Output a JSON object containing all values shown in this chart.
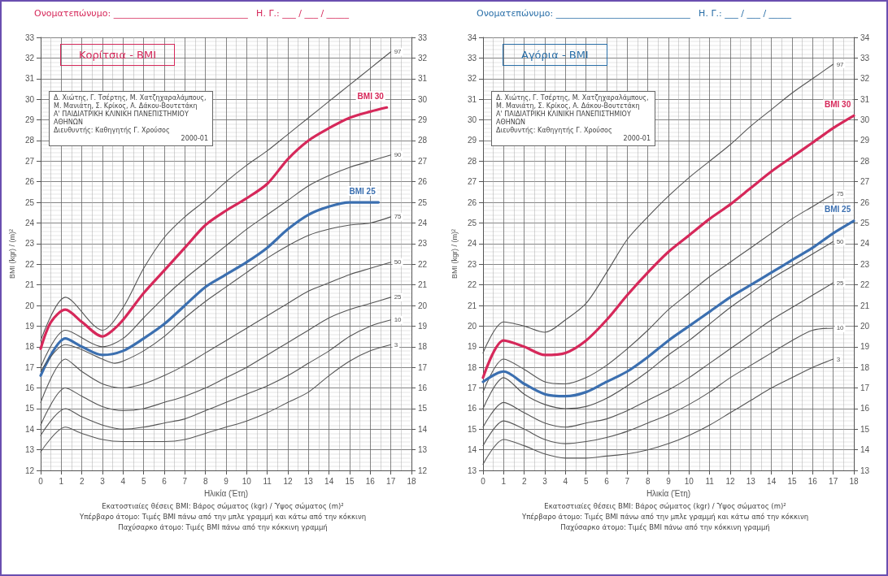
{
  "chart_data": [
    {
      "type": "line",
      "title": "Κορίτσια - BMI",
      "xlabel": "Ηλικία (Έτη)",
      "ylabel": "BMI (kgr) / (m)²",
      "annotations": [
        "Ονοματεπώνυμο: ______________________________   Η. Γ.: ___ / ___ / _____",
        "Δ. Χιώτης, Γ. Τσέρτης, Μ. Χατζηχαραλάμπους, Μ. Μανιάτη, Σ. Κρίκος, Α. Δάκου-Βουτετάκη",
        "Α' ΠΑΙΔΙΑΤΡΙΚΗ ΚΛΙΝΙΚΗ ΠΑΝΕΠΙΣΤΗΜΙΟΥ ΑΘΗΝΩΝ",
        "Διευθυντής: Καθηγητής Γ. Χρούσος",
        "2000-01",
        "Εκατοστιαίες θέσεις BMI: Βάρος σώματος (kgr) / Ύψος σώματος (m)²",
        "Υπέρβαρο άτομο: Τιμές BMI πάνω από την μπλε γραμμή και κάτω από την κόκκινη",
        "Παχύσαρκο άτομο: Τιμές BMI πάνω από την κόκκινη γραμμή"
      ],
      "xlim": [
        0,
        18
      ],
      "xticks": [
        0,
        1,
        2,
        3,
        4,
        5,
        6,
        7,
        8,
        9,
        10,
        11,
        12,
        13,
        14,
        15,
        16,
        17,
        18
      ],
      "ylim": [
        12,
        33
      ],
      "yticks": [
        12,
        13,
        14,
        15,
        16,
        17,
        18,
        19,
        20,
        21,
        22,
        23,
        24,
        25,
        26,
        27,
        28,
        29,
        30,
        31,
        32,
        33
      ],
      "y2lim": [
        12,
        33
      ],
      "y2ticks": [
        12,
        13,
        14,
        15,
        16,
        17,
        18,
        19,
        20,
        21,
        22,
        23,
        24,
        25,
        26,
        27,
        28,
        29,
        30,
        31,
        32,
        33
      ],
      "grid": true,
      "legend": false,
      "marker": "none",
      "line_style": "solid",
      "series": [
        {
          "name": "97",
          "color": "#555555",
          "x": [
            0,
            1.2,
            3,
            4,
            5,
            6,
            7,
            8,
            9,
            10,
            11,
            12,
            13,
            14,
            15,
            16,
            17
          ],
          "values": [
            18.3,
            20.4,
            18.8,
            19.9,
            21.8,
            23.3,
            24.3,
            25.1,
            26.0,
            26.8,
            27.5,
            28.3,
            29.1,
            29.9,
            30.7,
            31.5,
            32.3
          ]
        },
        {
          "name": "BMI 30",
          "color": "#d6285a",
          "x": [
            0,
            0.5,
            1.2,
            2,
            3,
            3.5,
            4,
            5,
            6,
            7,
            8,
            9,
            10,
            11,
            12,
            13,
            14,
            15,
            16,
            16.8
          ],
          "values": [
            17.9,
            19.2,
            19.8,
            19.2,
            18.5,
            18.8,
            19.3,
            20.6,
            21.7,
            22.8,
            23.9,
            24.6,
            25.2,
            25.9,
            27.1,
            28.0,
            28.6,
            29.1,
            29.4,
            29.6
          ]
        },
        {
          "name": "90",
          "color": "#555555",
          "x": [
            0,
            1.2,
            3,
            4,
            5,
            6,
            7,
            8,
            9,
            10,
            11,
            12,
            13,
            14,
            15,
            16,
            17
          ],
          "values": [
            17.0,
            18.8,
            18.0,
            18.4,
            19.4,
            20.4,
            21.3,
            22.1,
            22.9,
            23.7,
            24.4,
            25.1,
            25.8,
            26.3,
            26.7,
            27.0,
            27.3
          ]
        },
        {
          "name": "BMI 25",
          "color": "#3b6fb0",
          "x": [
            0,
            1.2,
            2,
            3,
            4,
            5,
            6,
            7,
            8,
            9,
            10,
            11,
            12,
            13,
            14,
            15,
            16.4
          ],
          "values": [
            16.6,
            18.4,
            18.0,
            17.6,
            17.8,
            18.4,
            19.1,
            20.0,
            20.9,
            21.5,
            22.1,
            22.8,
            23.7,
            24.4,
            24.8,
            25.0,
            25.0
          ]
        },
        {
          "name": "75",
          "color": "#555555",
          "x": [
            0,
            1.2,
            3,
            3.6,
            4,
            5,
            6,
            7,
            8,
            9,
            10,
            11,
            12,
            13,
            14,
            15,
            16,
            17
          ],
          "values": [
            16.8,
            18.1,
            17.4,
            17.2,
            17.3,
            17.8,
            18.5,
            19.4,
            20.2,
            20.9,
            21.6,
            22.3,
            22.9,
            23.4,
            23.7,
            23.9,
            24.0,
            24.3
          ]
        },
        {
          "name": "50",
          "color": "#555555",
          "x": [
            0,
            1.2,
            2,
            3,
            4,
            5,
            6,
            7,
            8,
            9,
            10,
            11,
            12,
            13,
            14,
            15,
            16,
            17
          ],
          "values": [
            15.3,
            17.4,
            16.8,
            16.2,
            16.0,
            16.2,
            16.6,
            17.1,
            17.7,
            18.3,
            18.9,
            19.5,
            20.1,
            20.7,
            21.1,
            21.5,
            21.8,
            22.1
          ]
        },
        {
          "name": "25",
          "color": "#555555",
          "x": [
            0,
            1.2,
            2,
            3,
            4,
            5,
            6,
            7,
            8,
            9,
            10,
            11,
            12,
            13,
            14,
            15,
            16,
            17
          ],
          "values": [
            14.2,
            16.0,
            15.6,
            15.1,
            14.9,
            15.0,
            15.3,
            15.6,
            16.0,
            16.5,
            17.0,
            17.6,
            18.2,
            18.8,
            19.4,
            19.8,
            20.1,
            20.4
          ]
        },
        {
          "name": "10",
          "color": "#555555",
          "x": [
            0,
            1.2,
            2,
            3,
            4,
            5,
            6,
            7,
            8,
            9,
            10,
            11,
            12,
            13,
            14,
            15,
            16,
            17
          ],
          "values": [
            13.7,
            15.0,
            14.6,
            14.2,
            14.0,
            14.1,
            14.3,
            14.5,
            14.9,
            15.3,
            15.7,
            16.1,
            16.6,
            17.2,
            17.8,
            18.5,
            19.0,
            19.3
          ]
        },
        {
          "name": "3",
          "color": "#555555",
          "x": [
            0,
            1.2,
            2,
            3,
            4,
            5,
            6,
            7,
            8,
            9,
            10,
            11,
            12,
            13,
            14,
            15,
            16,
            17
          ],
          "values": [
            12.9,
            14.1,
            13.8,
            13.5,
            13.4,
            13.4,
            13.4,
            13.5,
            13.8,
            14.1,
            14.4,
            14.8,
            15.3,
            15.8,
            16.6,
            17.3,
            17.8,
            18.1
          ]
        }
      ]
    },
    {
      "type": "line",
      "title": "Αγόρια - BMI",
      "xlabel": "Ηλικία (Έτη)",
      "ylabel": "BMI (kgr) / (m)²",
      "annotations": [
        "Ονοματεπώνυμο: ______________________________   Η. Γ.: ___ / ___ / _____",
        "Δ. Χιώτης, Γ. Τσέρτης, Μ. Χατζηχαραλάμπους, Μ. Μανιάτη, Σ. Κρίκος, Α. Δάκου-Βουτετάκη",
        "Α' ΠΑΙΔΙΑΤΡΙΚΗ ΚΛΙΝΙΚΗ ΠΑΝΕΠΙΣΤΗΜΙΟΥ ΑΘΗΝΩΝ",
        "Διευθυντής: Καθηγητής Γ. Χρούσος",
        "2000-01",
        "Εκατοστιαίες θέσεις BMI: Βάρος σώματος (kgr) / Ύψος σώματος (m)²",
        "Υπέρβαρο άτομο: Τιμές BMI πάνω από την μπλε γραμμή και κάτω από την κόκκινη",
        "Παχύσαρκο άτομο: Τιμές BMI πάνω από την κόκκινη γραμμή"
      ],
      "xlim": [
        0,
        18
      ],
      "xticks": [
        0,
        1,
        2,
        3,
        4,
        5,
        6,
        7,
        8,
        9,
        10,
        11,
        12,
        13,
        14,
        15,
        16,
        17,
        18
      ],
      "ylim": [
        13,
        34
      ],
      "yticks": [
        13,
        14,
        15,
        16,
        17,
        18,
        19,
        20,
        21,
        22,
        23,
        24,
        25,
        26,
        27,
        28,
        29,
        30,
        31,
        32,
        33,
        34
      ],
      "y2lim": [
        13,
        34
      ],
      "y2ticks": [
        13,
        14,
        15,
        16,
        17,
        18,
        19,
        20,
        21,
        22,
        23,
        24,
        25,
        26,
        27,
        28,
        29,
        30,
        31,
        32,
        33,
        34
      ],
      "grid": true,
      "legend": false,
      "marker": "none",
      "line_style": "solid",
      "series": [
        {
          "name": "97",
          "color": "#555555",
          "x": [
            0,
            1,
            2,
            3,
            4,
            5,
            6,
            7,
            8,
            9,
            10,
            11,
            12,
            13,
            14,
            15,
            16,
            17
          ],
          "values": [
            18.7,
            20.2,
            20.0,
            19.7,
            20.3,
            21.1,
            22.6,
            24.2,
            25.3,
            26.3,
            27.2,
            28.0,
            28.8,
            29.7,
            30.5,
            31.3,
            32.0,
            32.7
          ]
        },
        {
          "name": "BMI 30",
          "color": "#d6285a",
          "x": [
            0,
            1,
            2,
            3,
            4,
            5,
            6,
            7,
            8,
            9,
            10,
            11,
            12,
            13,
            14,
            15,
            16,
            17,
            18
          ],
          "values": [
            17.5,
            19.3,
            19.0,
            18.6,
            18.7,
            19.3,
            20.3,
            21.5,
            22.6,
            23.6,
            24.4,
            25.2,
            25.9,
            26.7,
            27.5,
            28.2,
            28.9,
            29.6,
            30.2
          ]
        },
        {
          "name": "75",
          "color": "#555555",
          "x": [
            0,
            1,
            2,
            3,
            4,
            5,
            6,
            7,
            8,
            9,
            10,
            11,
            12,
            13,
            14,
            15,
            16,
            17
          ],
          "values": [
            16.8,
            18.4,
            17.9,
            17.3,
            17.2,
            17.5,
            18.1,
            18.9,
            19.8,
            20.8,
            21.6,
            22.4,
            23.1,
            23.8,
            24.5,
            25.2,
            25.8,
            26.4
          ]
        },
        {
          "name": "BMI 25",
          "color": "#3b6fb0",
          "x": [
            0,
            1,
            2,
            3,
            4,
            5,
            6,
            7,
            8,
            9,
            10,
            11,
            12,
            13,
            14,
            15,
            16,
            17,
            18
          ],
          "values": [
            17.3,
            17.8,
            17.2,
            16.7,
            16.6,
            16.8,
            17.3,
            17.8,
            18.5,
            19.3,
            20.0,
            20.7,
            21.4,
            22.0,
            22.6,
            23.2,
            23.8,
            24.5,
            25.1
          ]
        },
        {
          "name": "50",
          "color": "#555555",
          "x": [
            0,
            1,
            2,
            3,
            4,
            5,
            6,
            7,
            8,
            9,
            10,
            11,
            12,
            13,
            14,
            15,
            16,
            17
          ],
          "values": [
            16.0,
            17.5,
            16.7,
            16.2,
            16.0,
            16.1,
            16.5,
            17.1,
            17.8,
            18.6,
            19.3,
            20.1,
            20.9,
            21.6,
            22.3,
            22.9,
            23.5,
            24.1
          ]
        },
        {
          "name": "25",
          "color": "#555555",
          "x": [
            0,
            1,
            2,
            3,
            4,
            5,
            6,
            7,
            8,
            9,
            10,
            11,
            12,
            13,
            14,
            15,
            16,
            17
          ],
          "values": [
            15.1,
            16.3,
            15.8,
            15.3,
            15.1,
            15.3,
            15.5,
            15.9,
            16.4,
            16.9,
            17.5,
            18.2,
            18.9,
            19.6,
            20.3,
            20.9,
            21.5,
            22.1
          ]
        },
        {
          "name": "10",
          "color": "#555555",
          "x": [
            0,
            1,
            2,
            3,
            4,
            5,
            6,
            7,
            8,
            9,
            10,
            11,
            12,
            13,
            14,
            15,
            16,
            17
          ],
          "values": [
            14.2,
            15.4,
            15.0,
            14.5,
            14.3,
            14.4,
            14.6,
            14.9,
            15.3,
            15.7,
            16.2,
            16.8,
            17.5,
            18.1,
            18.7,
            19.3,
            19.8,
            19.9
          ]
        },
        {
          "name": "3",
          "color": "#555555",
          "x": [
            0,
            1,
            2,
            3,
            4,
            5,
            6,
            7,
            8,
            9,
            10,
            11,
            12,
            13,
            14,
            15,
            16,
            17
          ],
          "values": [
            13.3,
            14.5,
            14.2,
            13.8,
            13.6,
            13.6,
            13.7,
            13.8,
            14.0,
            14.3,
            14.7,
            15.2,
            15.8,
            16.4,
            17.0,
            17.5,
            18.0,
            18.4
          ]
        }
      ]
    }
  ]
}
